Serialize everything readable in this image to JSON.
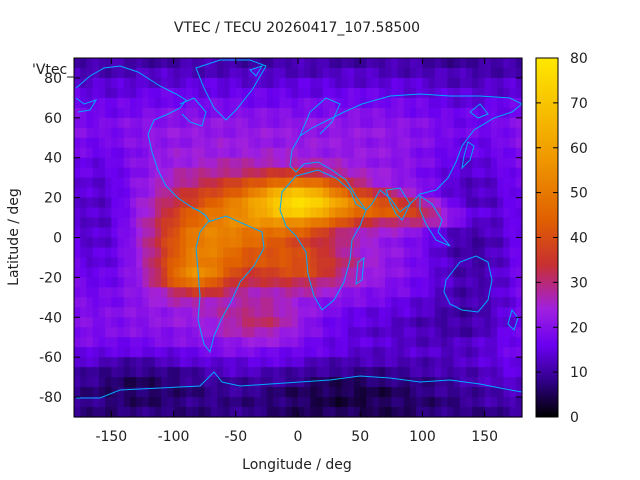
{
  "chart_data": {
    "type": "heatmap",
    "title": "VTEC / TECU 20260417_107.58500",
    "series_label": "'Vtec_",
    "xlabel": "Longitude / deg",
    "ylabel": "Latitude / deg",
    "xlim": [
      -180,
      180
    ],
    "ylim": [
      -90,
      90
    ],
    "x_ticks": [
      -150,
      -100,
      -50,
      0,
      50,
      100,
      150
    ],
    "y_ticks": [
      -80,
      -60,
      -40,
      -20,
      0,
      20,
      40,
      60,
      80
    ],
    "x_tick_labels": [
      "-150",
      "-100",
      "-50",
      "0",
      "50",
      "100",
      "150"
    ],
    "y_tick_labels": [
      "-80",
      "-60",
      "-40",
      "-20",
      "0",
      "20",
      "40",
      "60",
      "80"
    ],
    "colorbar": {
      "min": 0,
      "max": 80,
      "ticks": [
        0,
        10,
        20,
        30,
        40,
        50,
        60,
        70,
        80
      ],
      "tick_labels": [
        "0",
        "10",
        "20",
        "30",
        "40",
        "50",
        "60",
        "70",
        "80"
      ],
      "palette": [
        "#000000",
        "#300088",
        "#6a00f0",
        "#a020e0",
        "#c83030",
        "#e06000",
        "#f09a00",
        "#ffe800"
      ],
      "palette_stops": [
        0,
        8,
        16,
        24,
        34,
        44,
        58,
        80
      ]
    },
    "grid": false,
    "background_vtec": 22,
    "features": [
      {
        "type": "peak",
        "lon": 5,
        "lat": 18,
        "sigma_lon": 28,
        "sigma_lat": 8,
        "amp": 42
      },
      {
        "type": "peak",
        "lon": -45,
        "lat": 10,
        "sigma_lon": 45,
        "sigma_lat": 14,
        "amp": 26
      },
      {
        "type": "peak",
        "lon": -80,
        "lat": -10,
        "sigma_lon": 25,
        "sigma_lat": 12,
        "amp": 20
      },
      {
        "type": "peak",
        "lon": -85,
        "lat": -20,
        "sigma_lon": 18,
        "sigma_lat": 5,
        "amp": 16
      },
      {
        "type": "peak",
        "lon": 0,
        "lat": -15,
        "sigma_lon": 30,
        "sigma_lat": 8,
        "amp": 16
      },
      {
        "type": "peak",
        "lon": 70,
        "lat": 15,
        "sigma_lon": 28,
        "sigma_lat": 5,
        "amp": 18
      },
      {
        "type": "peak",
        "lon": 110,
        "lat": 10,
        "sigma_lon": 25,
        "sigma_lat": 4,
        "amp": 10
      },
      {
        "type": "peak",
        "lon": -30,
        "lat": -42,
        "sigma_lon": 25,
        "sigma_lat": 7,
        "amp": 10
      },
      {
        "type": "dip",
        "lon": -160,
        "lat": 10,
        "sigma_lon": 25,
        "sigma_lat": 30,
        "amp": -10
      },
      {
        "type": "dip",
        "lon": 140,
        "lat": 0,
        "sigma_lon": 30,
        "sigma_lat": 40,
        "amp": -12
      },
      {
        "type": "dip",
        "lon": 40,
        "lat": -75,
        "sigma_lon": 60,
        "sigma_lat": 12,
        "amp": -10
      },
      {
        "type": "dip",
        "lon": -130,
        "lat": -70,
        "sigma_lon": 50,
        "sigma_lat": 12,
        "amp": -10
      },
      {
        "type": "dip",
        "lon": 80,
        "lat": -45,
        "sigma_lon": 60,
        "sigma_lat": 12,
        "amp": -8
      }
    ]
  }
}
